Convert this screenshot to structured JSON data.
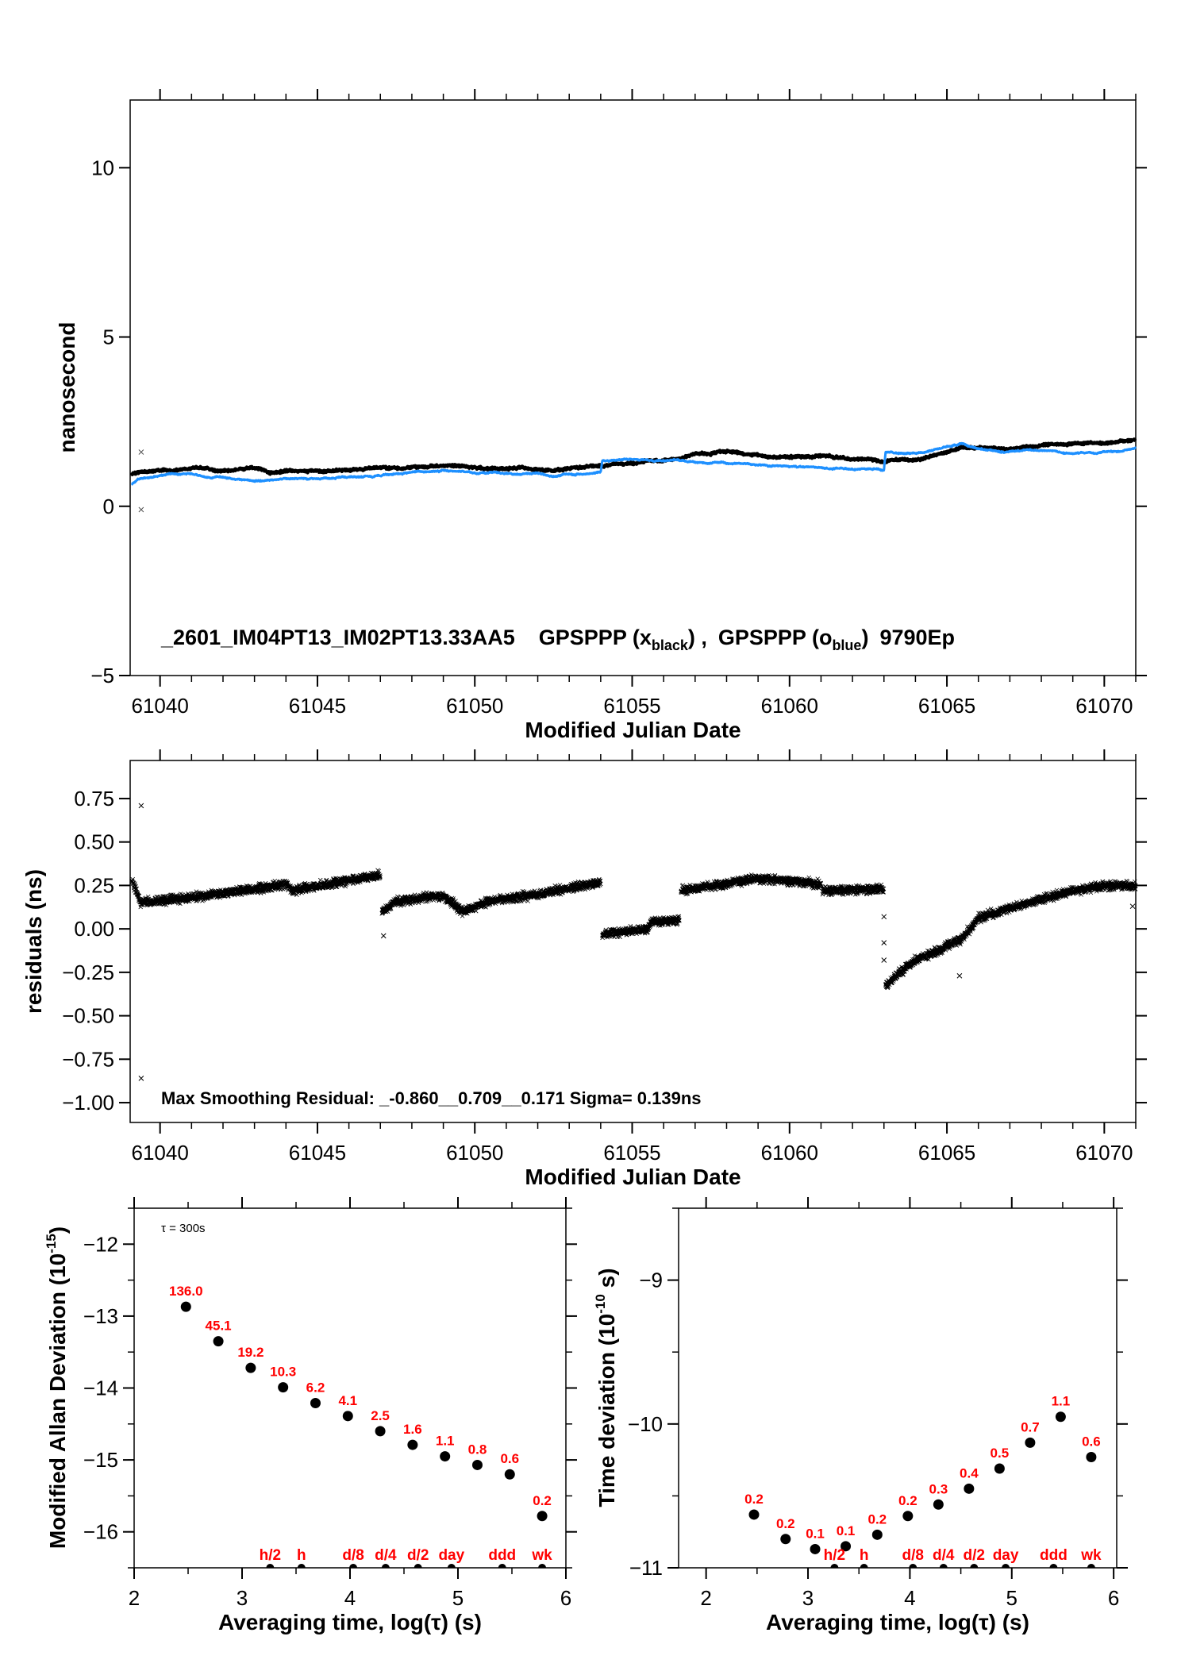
{
  "colors": {
    "series_black": "#000000",
    "series_blue": "#1e90ff",
    "labels_red": "#ff0000"
  },
  "chart_data": [
    {
      "type": "line",
      "xlabel": "Modified Julian Date",
      "ylabel": "nanosecond",
      "xlim": [
        61039.05,
        61071
      ],
      "ylim": [
        -5,
        12
      ],
      "x_ticks": [
        61040,
        61045,
        61050,
        61055,
        61060,
        61065,
        61070
      ],
      "x_tick_labels": [
        "61040",
        "61045",
        "61050",
        "61055",
        "61060",
        "61065",
        "61070"
      ],
      "x_minor_step": 1,
      "y_ticks": [
        -5,
        0,
        5,
        10
      ],
      "y_tick_labels": [
        "−5",
        "0",
        "5",
        "10"
      ],
      "annotation": {
        "station": "_2601_IM04PT13_IM02PT13.33AA5",
        "series1_prefix": "GPSPPP (x",
        "series1_sub": "black",
        "series1_suffix": ") ,",
        "series2_prefix": "GPSPPP (o",
        "series2_sub": "blue",
        "series2_suffix": ")",
        "tail": "9790Ep"
      },
      "series": [
        {
          "name": "GPSPPP (x black)",
          "color": "black",
          "points": [
            [
              61039.1,
              0.95
            ],
            [
              61040,
              1.05
            ],
            [
              61041,
              1.12
            ],
            [
              61042,
              1.05
            ],
            [
              61043,
              1.1
            ],
            [
              61043.5,
              0.95
            ],
            [
              61044,
              1.0
            ],
            [
              61045,
              1.05
            ],
            [
              61046,
              1.08
            ],
            [
              61047,
              1.12
            ],
            [
              61048,
              1.15
            ],
            [
              61049,
              1.2
            ],
            [
              61050,
              1.15
            ],
            [
              61051,
              1.12
            ],
            [
              61052,
              1.1
            ],
            [
              61052.5,
              1.05
            ],
            [
              61053,
              1.15
            ],
            [
              61054,
              1.22
            ],
            [
              61055,
              1.3
            ],
            [
              61056,
              1.35
            ],
            [
              61057,
              1.55
            ],
            [
              61058,
              1.6
            ],
            [
              61059,
              1.5
            ],
            [
              61060,
              1.45
            ],
            [
              61061,
              1.5
            ],
            [
              61062,
              1.38
            ],
            [
              61063,
              1.33
            ],
            [
              61064,
              1.4
            ],
            [
              61065,
              1.6
            ],
            [
              61065.5,
              1.8
            ],
            [
              61066,
              1.75
            ],
            [
              61067,
              1.72
            ],
            [
              61068,
              1.8
            ],
            [
              61069,
              1.85
            ],
            [
              61070,
              1.88
            ],
            [
              61071,
              1.98
            ]
          ]
        },
        {
          "name": "GPSPPP (o blue)",
          "color": "blue",
          "points": [
            [
              61039.1,
              0.65
            ],
            [
              61039.3,
              0.8
            ],
            [
              61040,
              0.88
            ],
            [
              61041,
              0.95
            ],
            [
              61042,
              0.85
            ],
            [
              61043,
              0.75
            ],
            [
              61044,
              0.8
            ],
            [
              61045,
              0.82
            ],
            [
              61046,
              0.92
            ],
            [
              61047,
              0.9
            ],
            [
              61048,
              1.0
            ],
            [
              61049,
              1.05
            ],
            [
              61050,
              0.98
            ],
            [
              61051,
              1.0
            ],
            [
              61052,
              0.95
            ],
            [
              61052.5,
              0.85
            ],
            [
              61053,
              0.95
            ],
            [
              61054,
              1.0
            ],
            [
              61054.05,
              1.3
            ],
            [
              61055,
              1.35
            ],
            [
              61056,
              1.38
            ],
            [
              61057,
              1.3
            ],
            [
              61058,
              1.3
            ],
            [
              61059,
              1.22
            ],
            [
              61060,
              1.18
            ],
            [
              61061,
              1.15
            ],
            [
              61062,
              1.1
            ],
            [
              61063,
              1.05
            ],
            [
              61063.05,
              1.6
            ],
            [
              61064,
              1.55
            ],
            [
              61065,
              1.75
            ],
            [
              61065.5,
              1.85
            ],
            [
              61066,
              1.7
            ],
            [
              61067,
              1.62
            ],
            [
              61068,
              1.62
            ],
            [
              61069,
              1.55
            ],
            [
              61070,
              1.6
            ],
            [
              61071,
              1.72
            ]
          ]
        }
      ],
      "outliers": [
        [
          61039.4,
          1.6
        ],
        [
          61039.4,
          -0.1
        ]
      ]
    },
    {
      "type": "scatter",
      "xlabel": "Modified Julian Date",
      "ylabel": "residuals (ns)",
      "xlim": [
        61039.05,
        61071
      ],
      "ylim": [
        -1.114,
        0.969
      ],
      "x_ticks": [
        61040,
        61045,
        61050,
        61055,
        61060,
        61065,
        61070
      ],
      "x_tick_labels": [
        "61040",
        "61045",
        "61050",
        "61055",
        "61060",
        "61065",
        "61070"
      ],
      "x_minor_step": 1,
      "y_ticks": [
        -1.0,
        -0.75,
        -0.5,
        -0.25,
        0,
        0.25,
        0.5,
        0.75
      ],
      "y_tick_labels": [
        "−1.00",
        "−0.75",
        "−0.50",
        "−0.25",
        "0.00",
        "0.25",
        "0.50",
        "0.75"
      ],
      "annotation": {
        "text": "Max Smoothing Residual: _-0.860__0.709__0.171  Sigma= 0.139ns"
      },
      "segments": [
        [
          [
            61039.1,
            0.28
          ],
          [
            61039.4,
            0.15
          ],
          [
            61041,
            0.18
          ],
          [
            61043,
            0.23
          ],
          [
            61044,
            0.26
          ],
          [
            61044.2,
            0.22
          ],
          [
            61046,
            0.28
          ],
          [
            61047,
            0.31
          ]
        ],
        [
          [
            61047.05,
            0.1
          ],
          [
            61047.5,
            0.16
          ],
          [
            61049,
            0.19
          ],
          [
            61049.6,
            0.1
          ],
          [
            61050.5,
            0.16
          ],
          [
            61052,
            0.2
          ],
          [
            61054,
            0.27
          ]
        ],
        [
          [
            61054.05,
            -0.03
          ],
          [
            61055.5,
            0.0
          ],
          [
            61055.6,
            0.04
          ],
          [
            61056.5,
            0.05
          ]
        ],
        [
          [
            61056.55,
            0.22
          ],
          [
            61058,
            0.26
          ],
          [
            61059,
            0.29
          ],
          [
            61060.5,
            0.27
          ],
          [
            61061,
            0.25
          ]
        ],
        [
          [
            61061.05,
            0.22
          ],
          [
            61063,
            0.23
          ]
        ],
        [
          [
            61063.05,
            -0.33
          ],
          [
            61063.5,
            -0.25
          ],
          [
            61064,
            -0.18
          ],
          [
            61065,
            -0.1
          ],
          [
            61065.5,
            -0.05
          ],
          [
            61066,
            0.06
          ],
          [
            61067,
            0.12
          ],
          [
            61068,
            0.17
          ],
          [
            61069,
            0.22
          ],
          [
            61070,
            0.25
          ],
          [
            61071,
            0.25
          ]
        ]
      ],
      "outliers": [
        [
          61039.4,
          0.709
        ],
        [
          61039.4,
          -0.86
        ],
        [
          61047.1,
          -0.04
        ],
        [
          61063.0,
          0.07
        ],
        [
          61063.0,
          -0.08
        ],
        [
          61063.0,
          -0.18
        ],
        [
          61065.4,
          -0.27
        ],
        [
          61070.9,
          0.13
        ]
      ]
    },
    {
      "type": "scatter",
      "xlabel": "Averaging time, log(τ) (s)",
      "ylabel_main": "Modified Allan Deviation (10",
      "ylabel_exp": "-15",
      "ylabel_end": ")",
      "note": "τ = 300s",
      "xlim": [
        2,
        6
      ],
      "ylim": [
        -16.5,
        -11.5
      ],
      "x_ticks": [
        2,
        3,
        4,
        5,
        6
      ],
      "x_tick_labels": [
        "2",
        "3",
        "4",
        "5",
        "6"
      ],
      "x_minor_step": 0.5,
      "y_ticks": [
        -16,
        -15,
        -14,
        -13,
        -12
      ],
      "y_tick_labels": [
        "−16",
        "−15",
        "−14",
        "−13",
        "−12"
      ],
      "y_minor_step": 0.5,
      "points": [
        {
          "x": 2.48,
          "y": -12.87,
          "label": "136.0"
        },
        {
          "x": 2.78,
          "y": -13.35,
          "label": "45.1"
        },
        {
          "x": 3.08,
          "y": -13.72,
          "label": "19.2"
        },
        {
          "x": 3.38,
          "y": -13.99,
          "label": "10.3"
        },
        {
          "x": 3.68,
          "y": -14.21,
          "label": "6.2"
        },
        {
          "x": 3.98,
          "y": -14.39,
          "label": "4.1"
        },
        {
          "x": 4.28,
          "y": -14.6,
          "label": "2.5"
        },
        {
          "x": 4.58,
          "y": -14.79,
          "label": "1.6"
        },
        {
          "x": 4.88,
          "y": -14.95,
          "label": "1.1"
        },
        {
          "x": 5.18,
          "y": -15.07,
          "label": "0.8"
        },
        {
          "x": 5.48,
          "y": -15.2,
          "label": "0.6"
        },
        {
          "x": 5.78,
          "y": -15.78,
          "label": "0.2"
        }
      ],
      "events": [
        {
          "x": 3.26,
          "label": "h/2"
        },
        {
          "x": 3.55,
          "label": "h"
        },
        {
          "x": 4.03,
          "label": "d/8"
        },
        {
          "x": 4.33,
          "label": "d/4"
        },
        {
          "x": 4.63,
          "label": "d/2"
        },
        {
          "x": 4.94,
          "label": "day"
        },
        {
          "x": 5.41,
          "label": "ddd"
        },
        {
          "x": 5.78,
          "label": "wk"
        }
      ]
    },
    {
      "type": "scatter",
      "xlabel": "Averaging time, log(τ) (s)",
      "ylabel_main": "Time deviation (10",
      "ylabel_exp": "-10",
      "ylabel_end": " s)",
      "xlim": [
        1.73,
        6.03
      ],
      "ylim": [
        -11,
        -8.5
      ],
      "x_ticks": [
        2,
        3,
        4,
        5,
        6
      ],
      "x_tick_labels": [
        "2",
        "3",
        "4",
        "5",
        "6"
      ],
      "x_minor_step": 0.5,
      "y_ticks": [
        -11,
        -10,
        -9
      ],
      "y_tick_labels": [
        "−11",
        "−10",
        "−9"
      ],
      "y_minor_step": 0.5,
      "points": [
        {
          "x": 2.47,
          "y": -10.63,
          "label": "0.2"
        },
        {
          "x": 2.78,
          "y": -10.8,
          "label": "0.2"
        },
        {
          "x": 3.07,
          "y": -10.87,
          "label": "0.1"
        },
        {
          "x": 3.37,
          "y": -10.85,
          "label": "0.1"
        },
        {
          "x": 3.68,
          "y": -10.77,
          "label": "0.2"
        },
        {
          "x": 3.98,
          "y": -10.64,
          "label": "0.2"
        },
        {
          "x": 4.28,
          "y": -10.56,
          "label": "0.3"
        },
        {
          "x": 4.58,
          "y": -10.45,
          "label": "0.4"
        },
        {
          "x": 4.88,
          "y": -10.31,
          "label": "0.5"
        },
        {
          "x": 5.18,
          "y": -10.13,
          "label": "0.7"
        },
        {
          "x": 5.48,
          "y": -9.95,
          "label": "1.1"
        },
        {
          "x": 5.78,
          "y": -10.23,
          "label": "0.6"
        }
      ],
      "events": [
        {
          "x": 3.26,
          "label": "h/2"
        },
        {
          "x": 3.55,
          "label": "h"
        },
        {
          "x": 4.03,
          "label": "d/8"
        },
        {
          "x": 4.33,
          "label": "d/4"
        },
        {
          "x": 4.63,
          "label": "d/2"
        },
        {
          "x": 4.94,
          "label": "day"
        },
        {
          "x": 5.41,
          "label": "ddd"
        },
        {
          "x": 5.78,
          "label": "wk"
        }
      ]
    }
  ]
}
